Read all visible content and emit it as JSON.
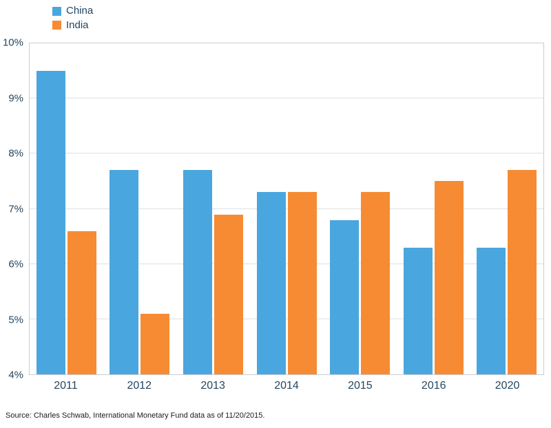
{
  "legend": {
    "items": [
      {
        "label": "China",
        "color": "#4AA6DE"
      },
      {
        "label": "India",
        "color": "#F68B33"
      }
    ]
  },
  "source": "Source: Charles Schwab, International Monetary Fund data as of 11/20/2015.",
  "chart_data": {
    "type": "bar",
    "title": "",
    "xlabel": "",
    "ylabel": "",
    "categories": [
      "2011",
      "2012",
      "2013",
      "2014",
      "2015",
      "2016",
      "2020"
    ],
    "series": [
      {
        "name": "China",
        "color": "#4AA6DE",
        "values": [
          9.5,
          7.7,
          7.7,
          7.3,
          6.8,
          6.3,
          6.3
        ]
      },
      {
        "name": "India",
        "color": "#F68B33",
        "values": [
          6.6,
          5.1,
          6.9,
          7.3,
          7.3,
          7.5,
          7.7
        ]
      }
    ],
    "ylim": [
      4,
      10
    ],
    "ytick_step": 1,
    "ytick_suffix": "%",
    "grid": true,
    "legend_position": "top-left"
  }
}
